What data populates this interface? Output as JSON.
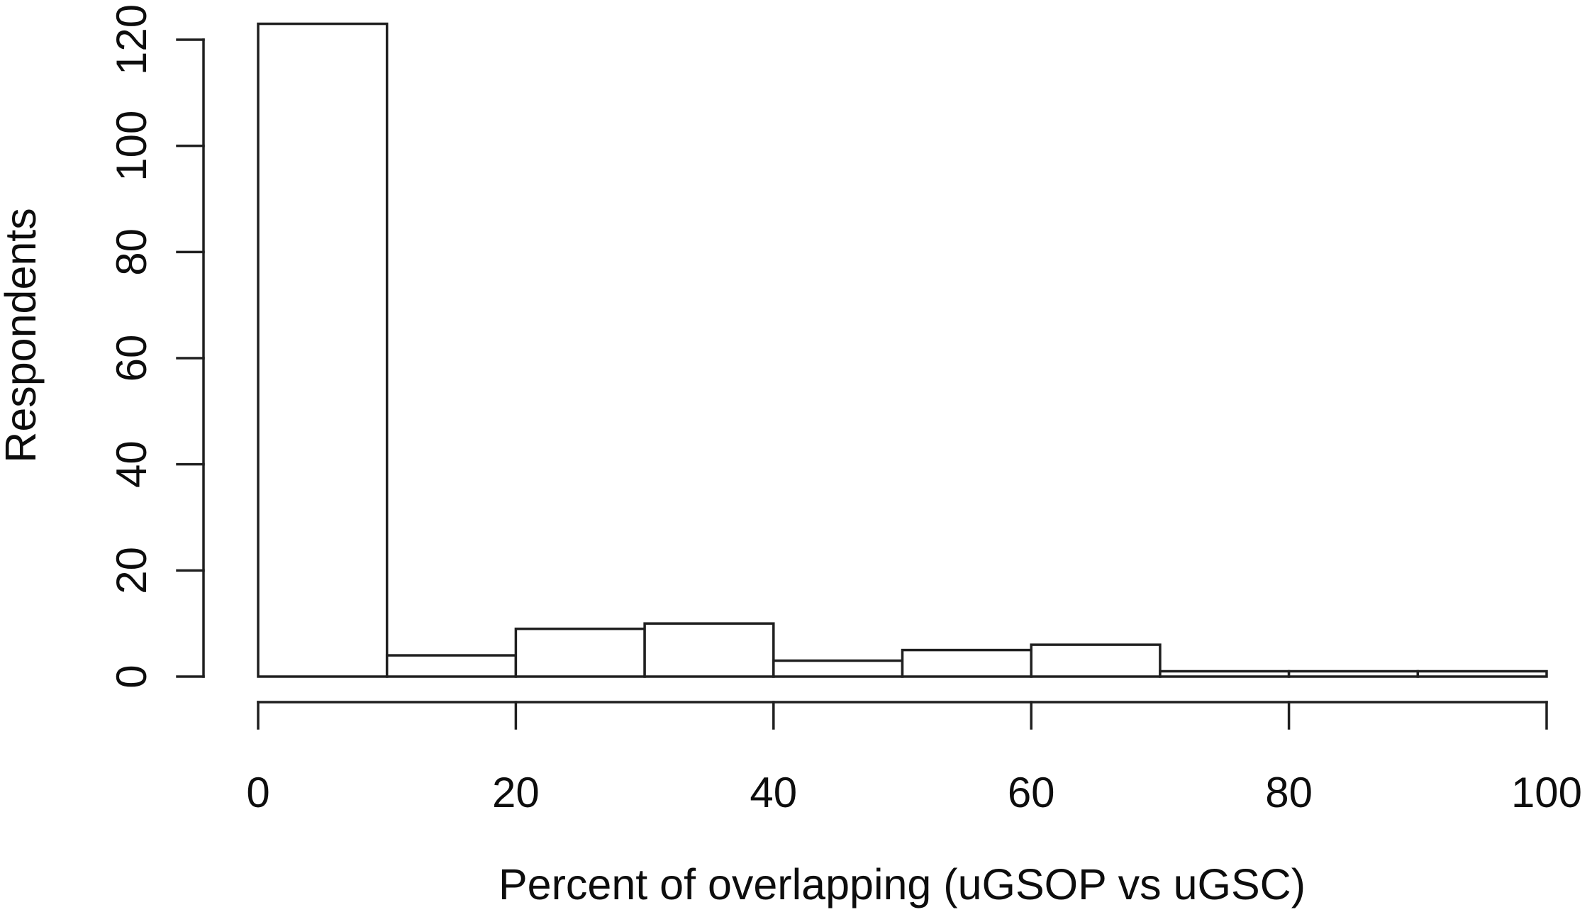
{
  "figure": {
    "background": "#ffffff",
    "line_color": "#202020",
    "text_color": "#0d0d0d",
    "bar_fill": "#ffffff"
  },
  "chart_data": {
    "type": "bar",
    "subtype": "histogram",
    "title": "",
    "xlabel": "Percent of overlapping (uGSOP vs uGSC)",
    "ylabel": "Respondents",
    "bin_width": 10,
    "bin_edges": [
      0,
      10,
      20,
      30,
      40,
      50,
      60,
      70,
      80,
      90,
      100
    ],
    "values": [
      123,
      4,
      9,
      10,
      3,
      5,
      6,
      1,
      1,
      1
    ],
    "x_ticks": [
      0,
      20,
      40,
      60,
      80,
      100
    ],
    "y_ticks": [
      0,
      20,
      40,
      60,
      80,
      100,
      120
    ],
    "xlim": [
      0,
      100
    ],
    "ylim": [
      0,
      120
    ],
    "grid": false,
    "legend": "none",
    "total_respondents": 163
  }
}
